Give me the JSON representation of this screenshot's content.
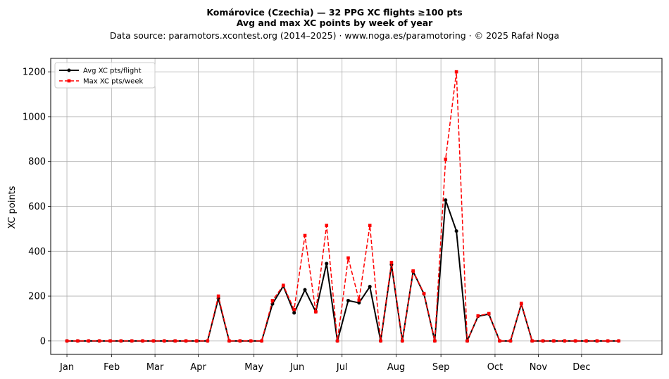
{
  "chart_data": {
    "type": "line",
    "title": "Komárovice (Czechia)  —  32 PPG XC flights ≥100 pts",
    "subtitle": "Avg and max XC points by week of year",
    "source": "Data source: paramotors.xcontest.org (2014–2025)  ·  www.noga.es/paramotoring  ·  © 2025 Rafał Noga",
    "xlabel": "",
    "ylabel": "XC points",
    "xlim": [
      -1.5,
      55
    ],
    "ylim": [
      -60,
      1260
    ],
    "yticks": [
      0,
      200,
      400,
      600,
      800,
      1000,
      1200
    ],
    "xticks": [
      {
        "label": "Jan",
        "x": 0
      },
      {
        "label": "Feb",
        "x": 4.14
      },
      {
        "label": "Mar",
        "x": 8.14
      },
      {
        "label": "Apr",
        "x": 12.14
      },
      {
        "label": "May",
        "x": 17.29
      },
      {
        "label": "Jun",
        "x": 21.29
      },
      {
        "label": "Jul",
        "x": 25.43
      },
      {
        "label": "Aug",
        "x": 30.43
      },
      {
        "label": "Sep",
        "x": 34.57
      },
      {
        "label": "Oct",
        "x": 39.57
      },
      {
        "label": "Nov",
        "x": 43.57
      },
      {
        "label": "Dec",
        "x": 47.57
      }
    ],
    "grid": true,
    "legend_position": "top-left",
    "x": [
      0,
      1,
      2,
      3,
      4,
      5,
      6,
      7,
      8,
      9,
      10,
      11,
      12,
      13,
      14,
      15,
      16,
      17,
      18,
      19,
      20,
      21,
      22,
      23,
      24,
      25,
      26,
      27,
      28,
      29,
      30,
      31,
      32,
      33,
      34,
      35,
      36,
      37,
      38,
      39,
      40,
      41,
      42,
      43,
      44,
      45,
      46,
      47,
      48,
      49,
      50,
      51
    ],
    "series": [
      {
        "name": "Avg XC pts/flight",
        "color": "#000000",
        "style": "solid",
        "marker": "circle",
        "values": [
          0,
          0,
          0,
          0,
          0,
          0,
          0,
          0,
          0,
          0,
          0,
          0,
          0,
          0,
          190,
          0,
          0,
          0,
          0,
          165,
          245,
          125,
          228,
          130,
          345,
          0,
          180,
          170,
          242,
          0,
          340,
          0,
          310,
          210,
          0,
          628,
          490,
          0,
          110,
          120,
          0,
          0,
          165,
          0,
          0,
          0,
          0,
          0,
          0,
          0,
          0,
          0
        ]
      },
      {
        "name": "Max XC pts/week",
        "color": "#ff0000",
        "style": "dashed",
        "marker": "square",
        "values": [
          0,
          0,
          0,
          0,
          0,
          0,
          0,
          0,
          0,
          0,
          0,
          0,
          0,
          0,
          200,
          0,
          0,
          0,
          0,
          180,
          248,
          140,
          470,
          130,
          515,
          0,
          370,
          182,
          515,
          0,
          350,
          0,
          312,
          212,
          0,
          810,
          1200,
          0,
          112,
          122,
          0,
          0,
          168,
          0,
          0,
          0,
          0,
          0,
          0,
          0,
          0,
          0
        ]
      }
    ]
  }
}
